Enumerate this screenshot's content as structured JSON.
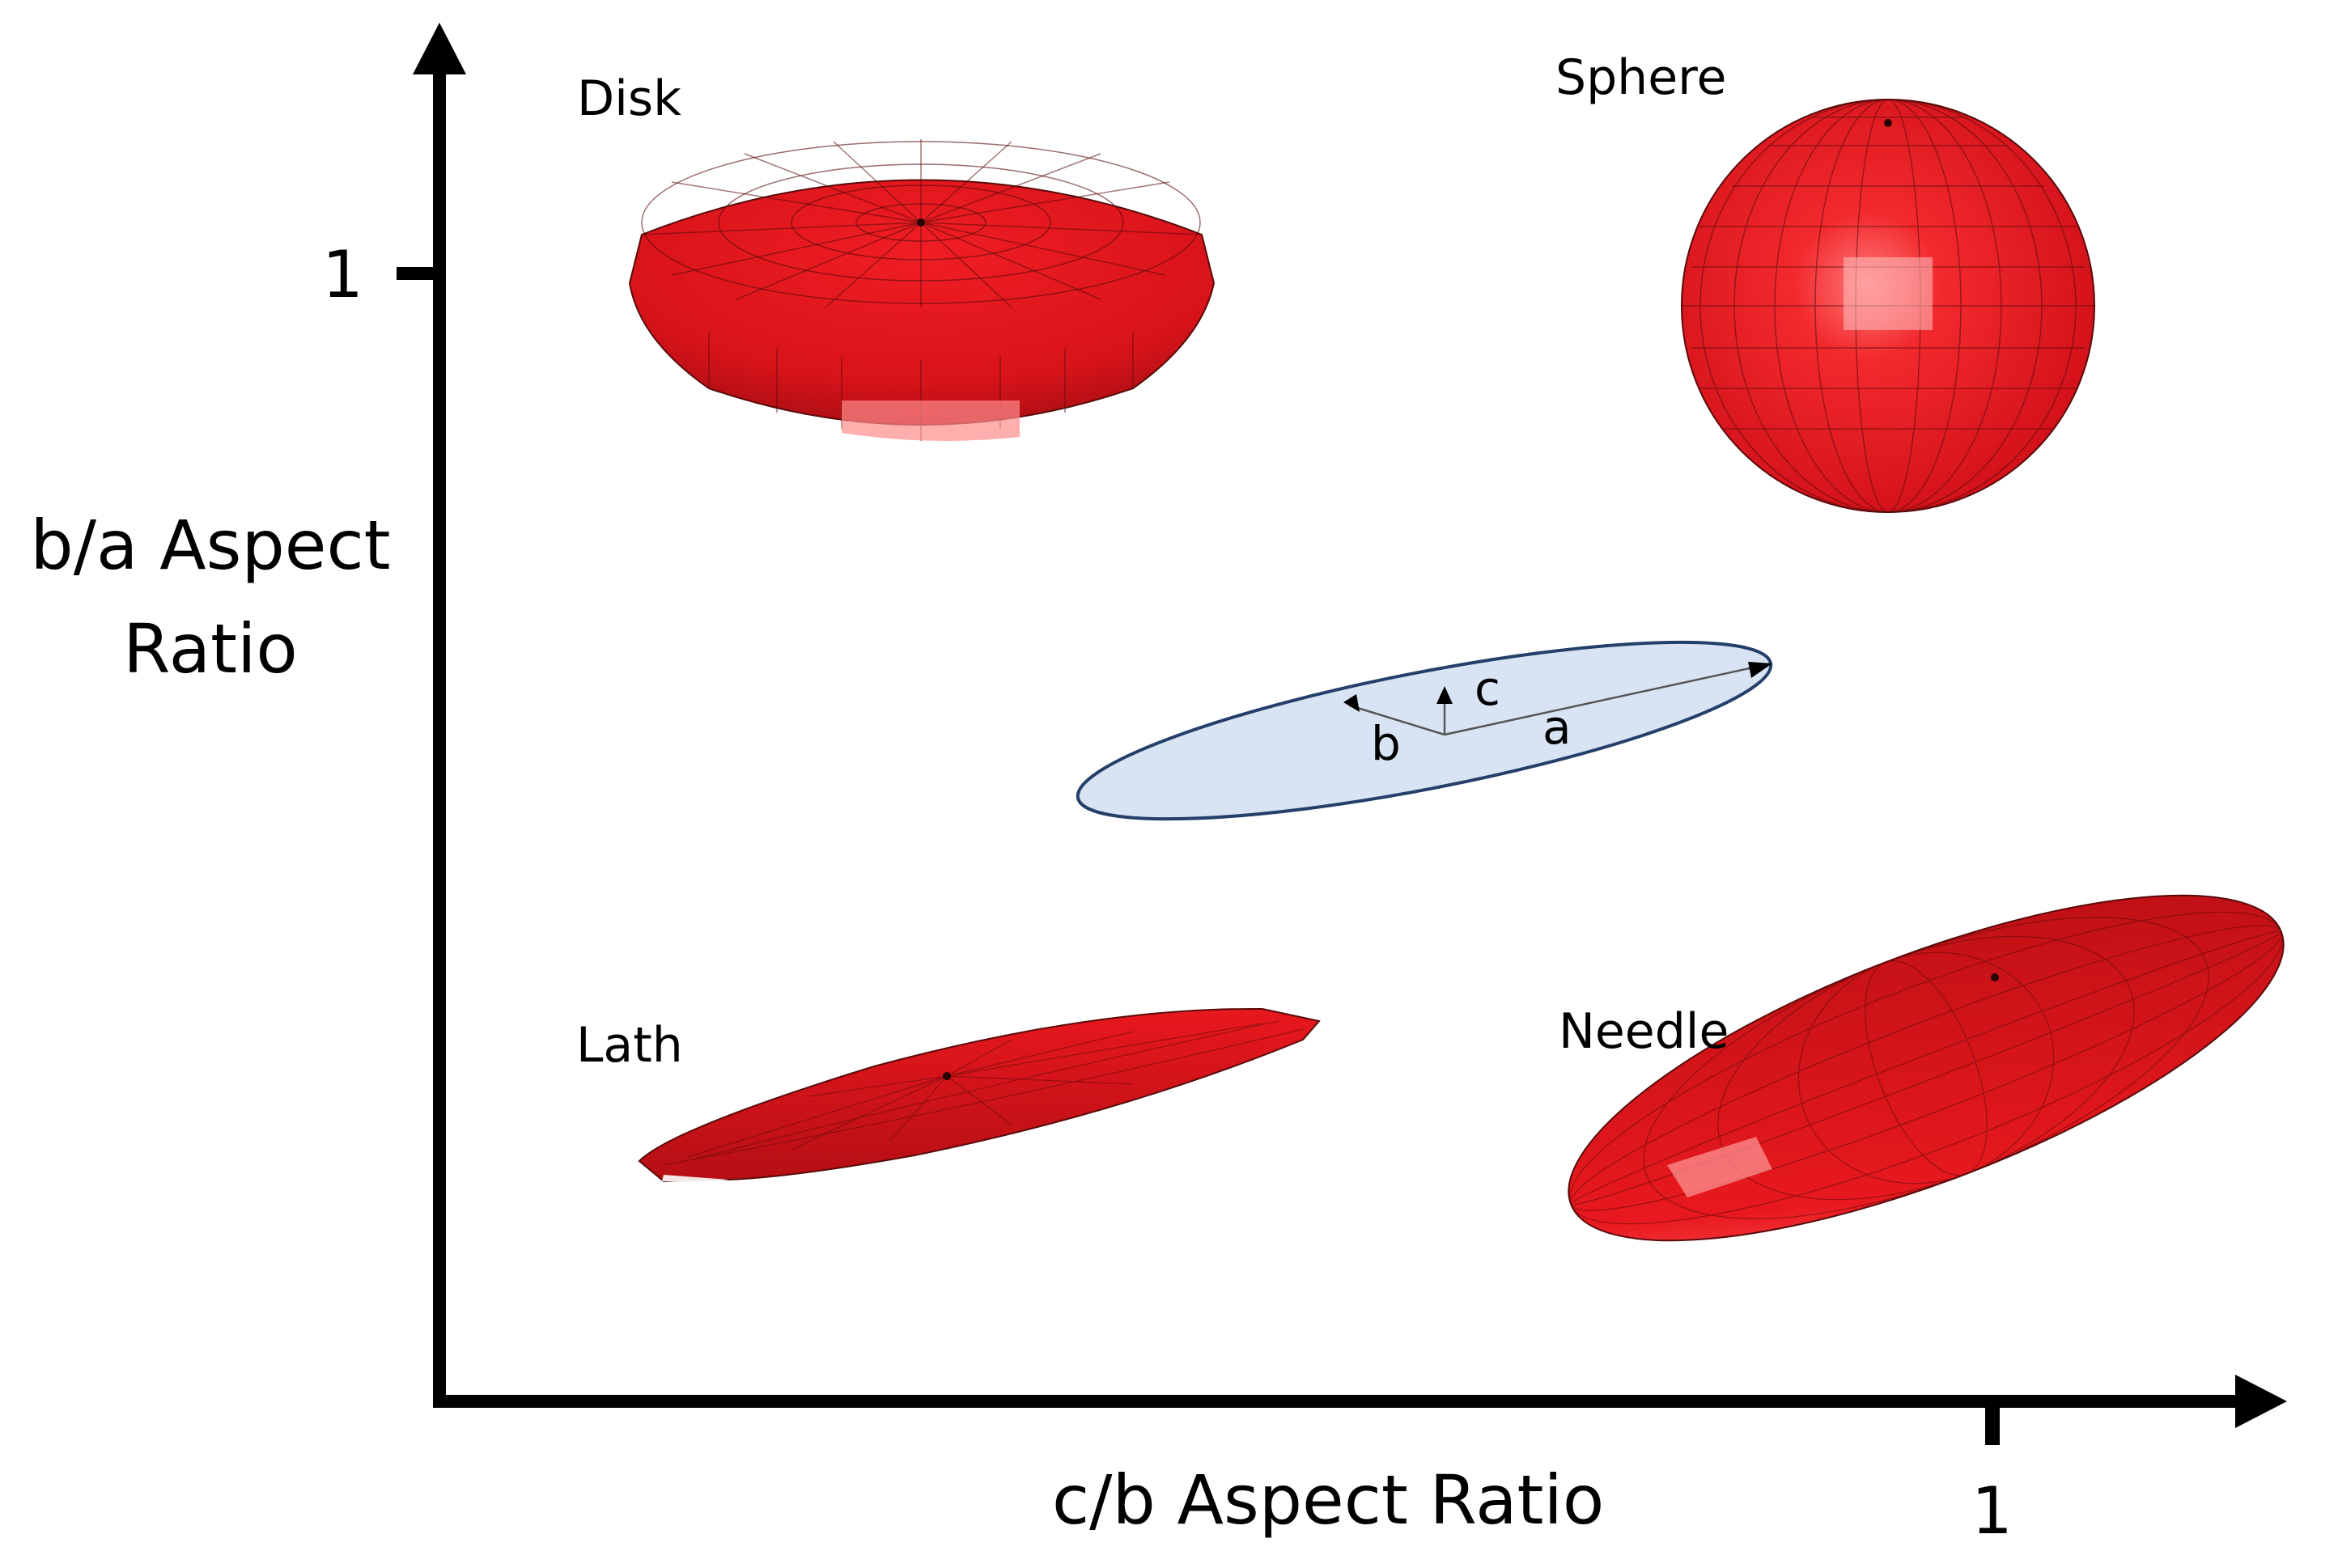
{
  "diagram": {
    "axes": {
      "y_title_line1": "b/a Aspect",
      "y_title_line2": "Ratio",
      "x_title": "c/b Aspect Ratio",
      "y_tick": "1",
      "x_tick": "1"
    },
    "shapes": {
      "disk": "Disk",
      "sphere": "Sphere",
      "lath": "Lath",
      "needle": "Needle"
    },
    "ellipsoid_axes": {
      "a": "a",
      "b": "b",
      "c": "c"
    },
    "colors": {
      "shape_fill": "#e8141b",
      "shape_dark": "#8e0d0d",
      "reference_fill": "#d8e3f3",
      "reference_stroke": "#24406a"
    }
  }
}
